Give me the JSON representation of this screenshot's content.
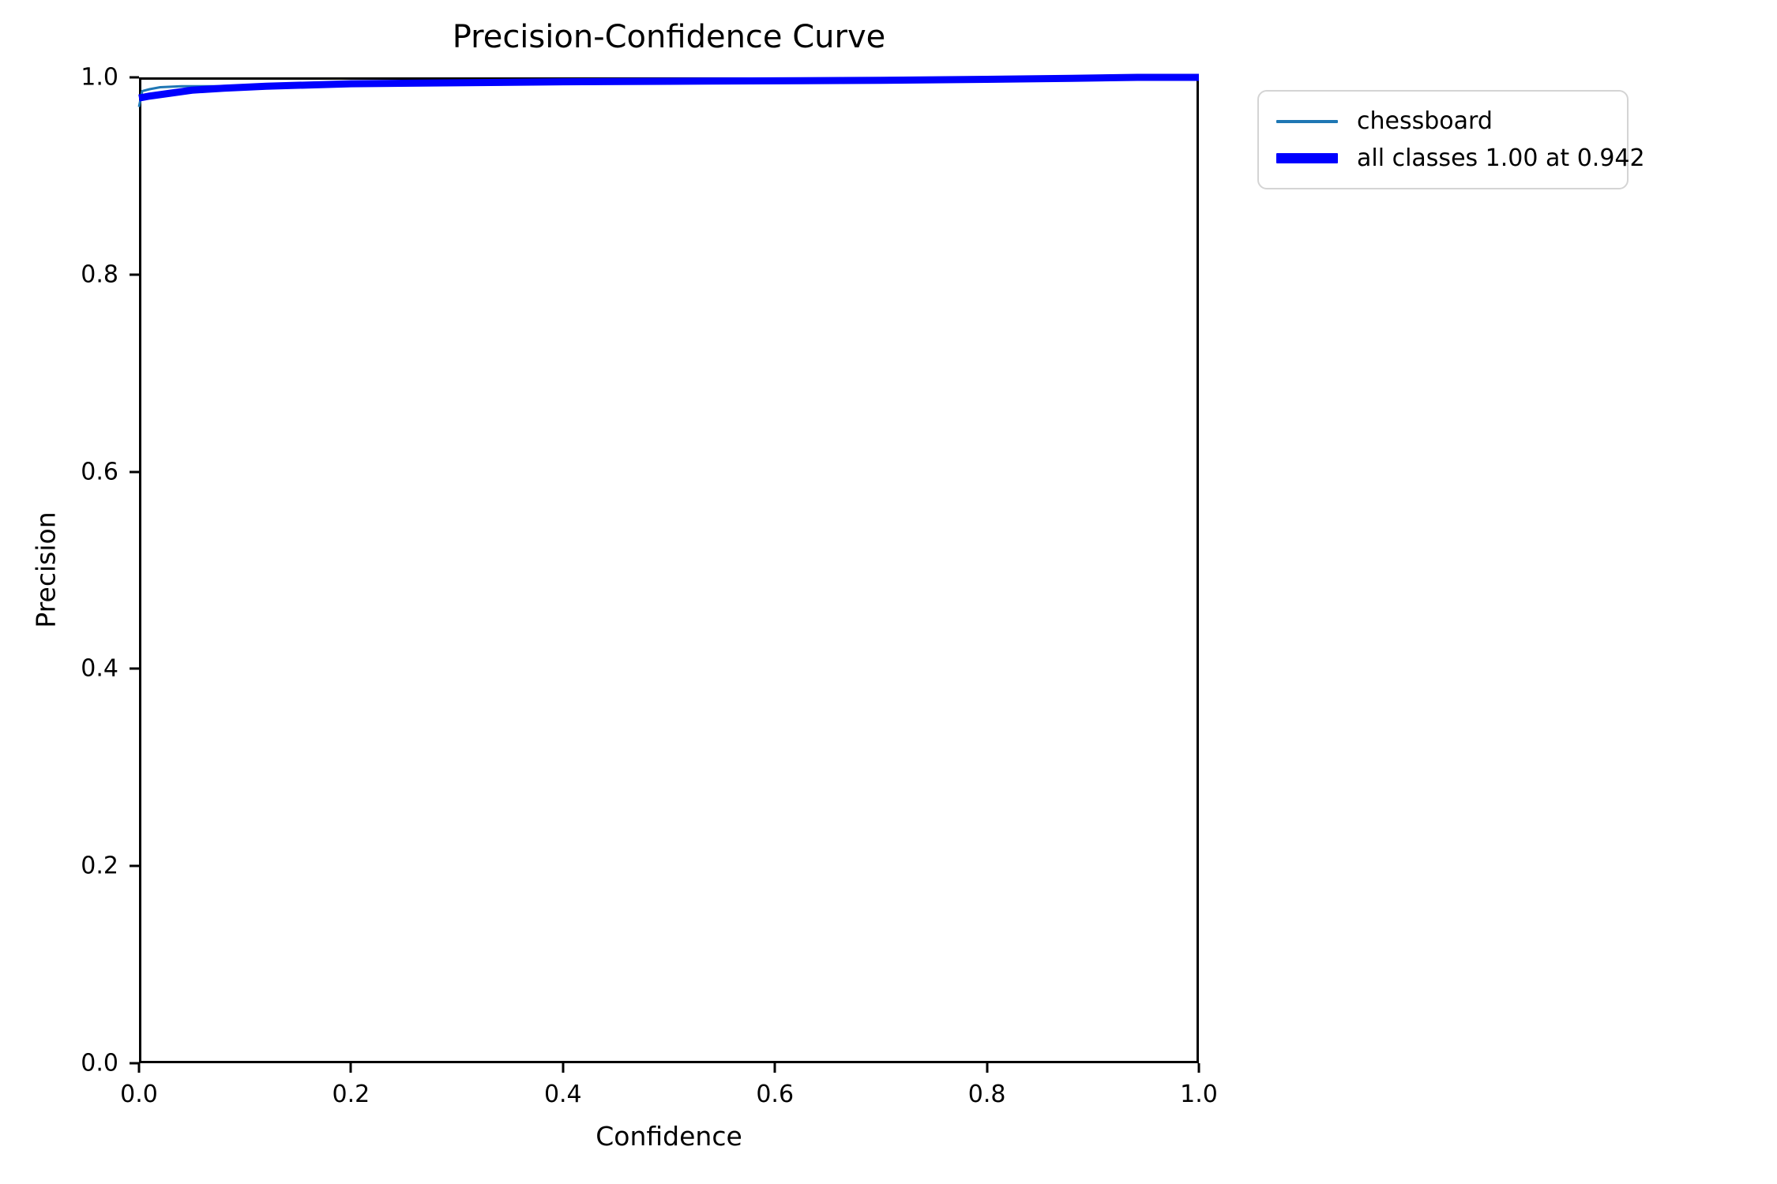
{
  "chart_data": {
    "type": "line",
    "title": "Precision-Confidence Curve",
    "xlabel": "Confidence",
    "ylabel": "Precision",
    "xlim": [
      0.0,
      1.0
    ],
    "ylim": [
      0.0,
      1.0
    ],
    "x_ticks": [
      "0.0",
      "0.2",
      "0.4",
      "0.6",
      "0.8",
      "1.0"
    ],
    "y_ticks": [
      "0.0",
      "0.2",
      "0.4",
      "0.6",
      "0.8",
      "1.0"
    ],
    "grid": false,
    "legend_position": "outside-upper-right",
    "series": [
      {
        "name": "chessboard",
        "label": "chessboard",
        "color": "#1f77b4",
        "linewidth": 3,
        "x": [
          0.0,
          0.003,
          0.01,
          0.02,
          0.04,
          0.06,
          0.08,
          0.12,
          0.2,
          0.3,
          0.4,
          0.5,
          0.6,
          0.7,
          0.8,
          0.88,
          0.942,
          1.0
        ],
        "y": [
          0.97,
          0.986,
          0.988,
          0.99,
          0.991,
          0.991,
          0.991,
          0.992,
          0.9935,
          0.9945,
          0.9955,
          0.996,
          0.9965,
          0.997,
          0.998,
          0.999,
          1.0,
          1.0
        ]
      },
      {
        "name": "all-classes",
        "label": "all classes 1.00 at 0.942",
        "color": "#0000ff",
        "linewidth": 9,
        "x": [
          0.0,
          0.01,
          0.03,
          0.05,
          0.08,
          0.12,
          0.2,
          0.3,
          0.4,
          0.5,
          0.6,
          0.7,
          0.8,
          0.88,
          0.942,
          1.0
        ],
        "y": [
          0.979,
          0.981,
          0.984,
          0.987,
          0.989,
          0.991,
          0.9935,
          0.9945,
          0.9955,
          0.996,
          0.9965,
          0.997,
          0.998,
          0.999,
          1.0,
          1.0
        ]
      }
    ]
  }
}
